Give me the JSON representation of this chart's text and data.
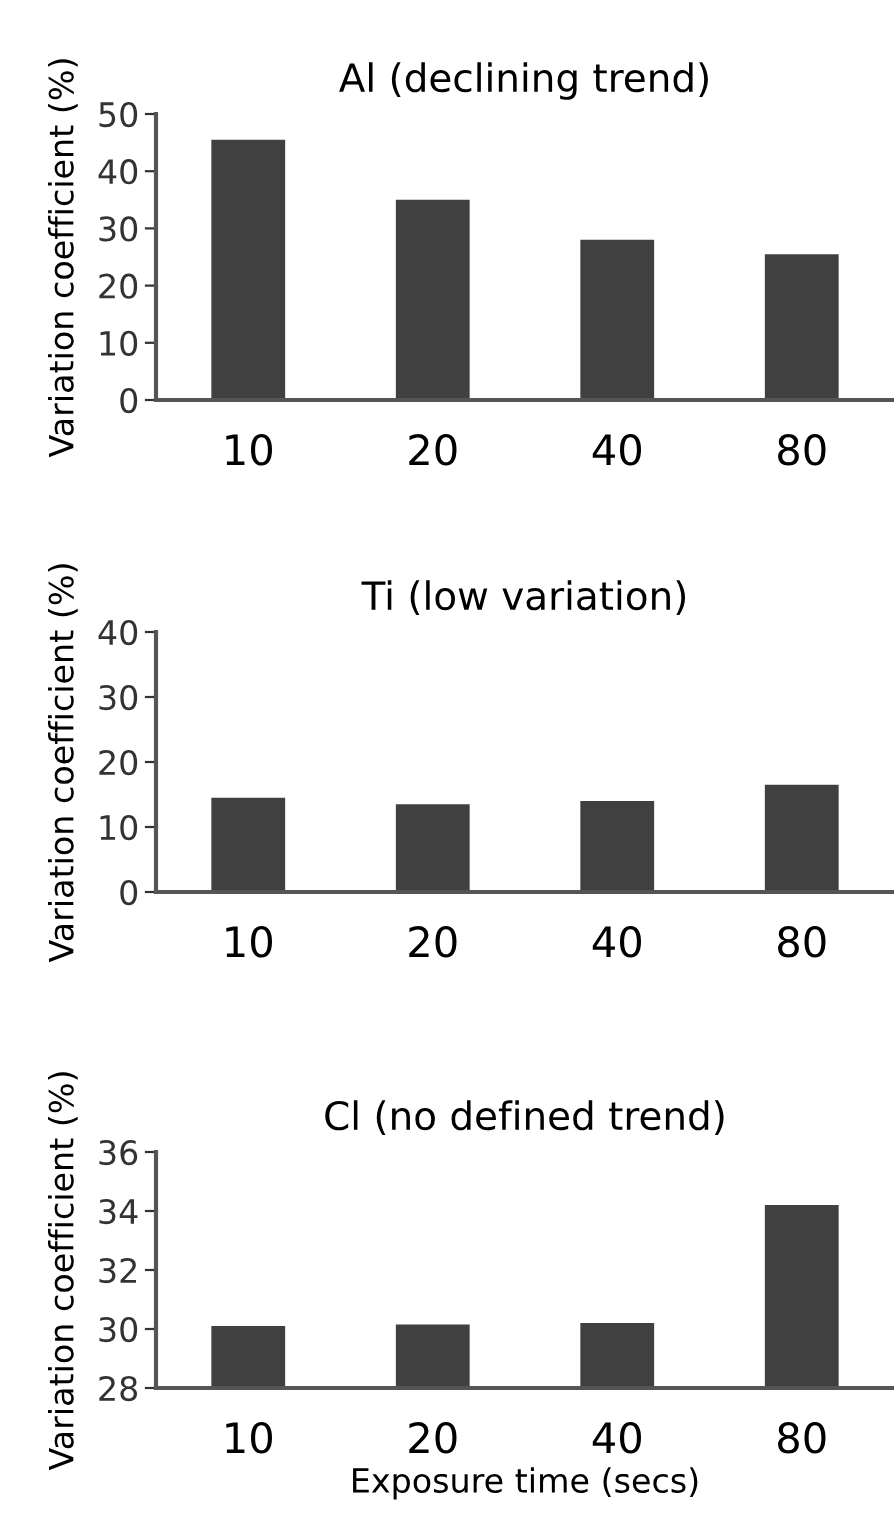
{
  "chart_data": [
    {
      "type": "bar",
      "title": "Al (declining trend)",
      "ylabel": "Variation coefficient (%)",
      "categories": [
        "10",
        "20",
        "40",
        "80"
      ],
      "values": [
        45.5,
        35,
        28,
        25.5
      ],
      "color": "#404040",
      "ylim": [
        0,
        50
      ],
      "yticks": [
        0,
        10,
        20,
        30,
        40,
        50
      ],
      "grid": false,
      "legend": false
    },
    {
      "type": "bar",
      "title": "Ti (low variation)",
      "ylabel": "Variation coefficient (%)",
      "categories": [
        "10",
        "20",
        "40",
        "80"
      ],
      "values": [
        14.5,
        13.5,
        14,
        16.5
      ],
      "color": "#404040",
      "ylim": [
        0,
        40
      ],
      "yticks": [
        0,
        10,
        20,
        30,
        40
      ],
      "grid": false,
      "legend": false
    },
    {
      "type": "bar",
      "title": "Cl (no defined trend)",
      "ylabel": "Variation coefficient (%)",
      "xlabel": "Exposure time (secs)",
      "categories": [
        "10",
        "20",
        "40",
        "80"
      ],
      "values": [
        30.1,
        30.15,
        30.2,
        34.2
      ],
      "color": "#404040",
      "ylim": [
        28,
        36
      ],
      "yticks": [
        28,
        30,
        32,
        34,
        36
      ],
      "grid": false,
      "legend": false
    }
  ]
}
